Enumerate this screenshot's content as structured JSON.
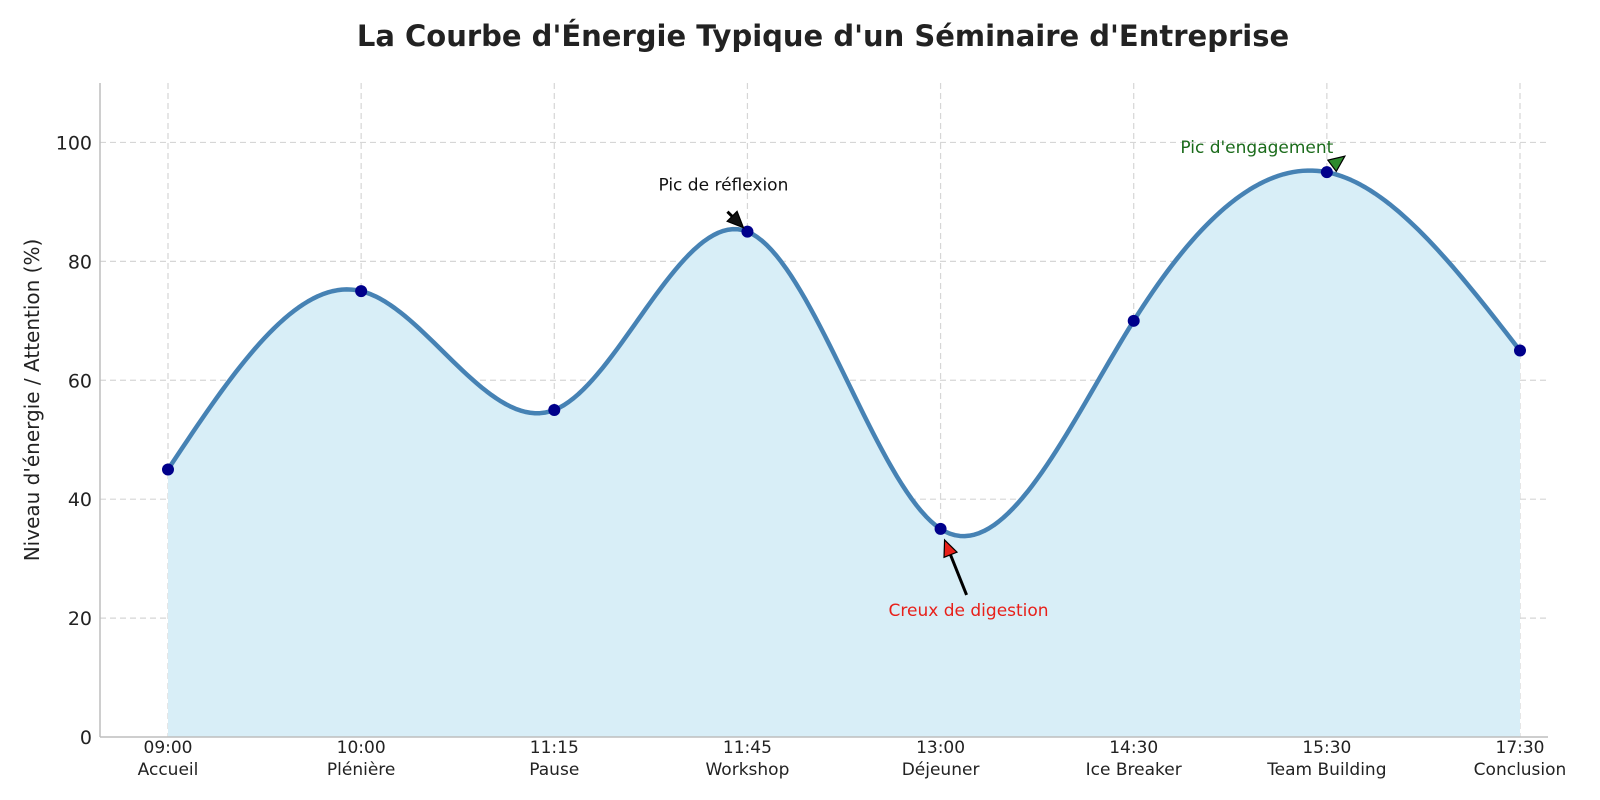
{
  "chart_data": {
    "type": "line",
    "title": "La Courbe d'Énergie Typique d'un Séminaire d'Entreprise",
    "ylabel": "Niveau d'énergie / Attention (%)",
    "xlabel": "",
    "ylim": [
      0,
      110
    ],
    "yticks": [
      0,
      20,
      40,
      60,
      80,
      100
    ],
    "categories": [
      {
        "time": "09:00",
        "label": "Accueil"
      },
      {
        "time": "10:00",
        "label": "Plénière"
      },
      {
        "time": "11:15",
        "label": "Pause"
      },
      {
        "time": "11:45",
        "label": "Workshop"
      },
      {
        "time": "13:00",
        "label": "Déjeuner"
      },
      {
        "time": "14:30",
        "label": "Ice Breaker"
      },
      {
        "time": "15:30",
        "label": "Team Building"
      },
      {
        "time": "17:30",
        "label": "Conclusion"
      }
    ],
    "values": [
      45,
      75,
      55,
      85,
      35,
      70,
      95,
      65
    ],
    "grid": true,
    "fill_under": true,
    "colors": {
      "line": "#4682b4",
      "fill": "#d8eef7",
      "marker": "#00008b",
      "grid": "#d6d6d6"
    },
    "annotations": [
      {
        "text": "Pic de réflexion",
        "point_index": 3,
        "color": "#111111",
        "arrow_color": "#111111"
      },
      {
        "text": "Creux de digestion",
        "point_index": 4,
        "color": "#e8201a",
        "arrow_color": "#e8201a"
      },
      {
        "text": "Pic d'engagement",
        "point_index": 6,
        "color": "#1b6b1b",
        "arrow_color": "#2e8b2e"
      }
    ]
  }
}
